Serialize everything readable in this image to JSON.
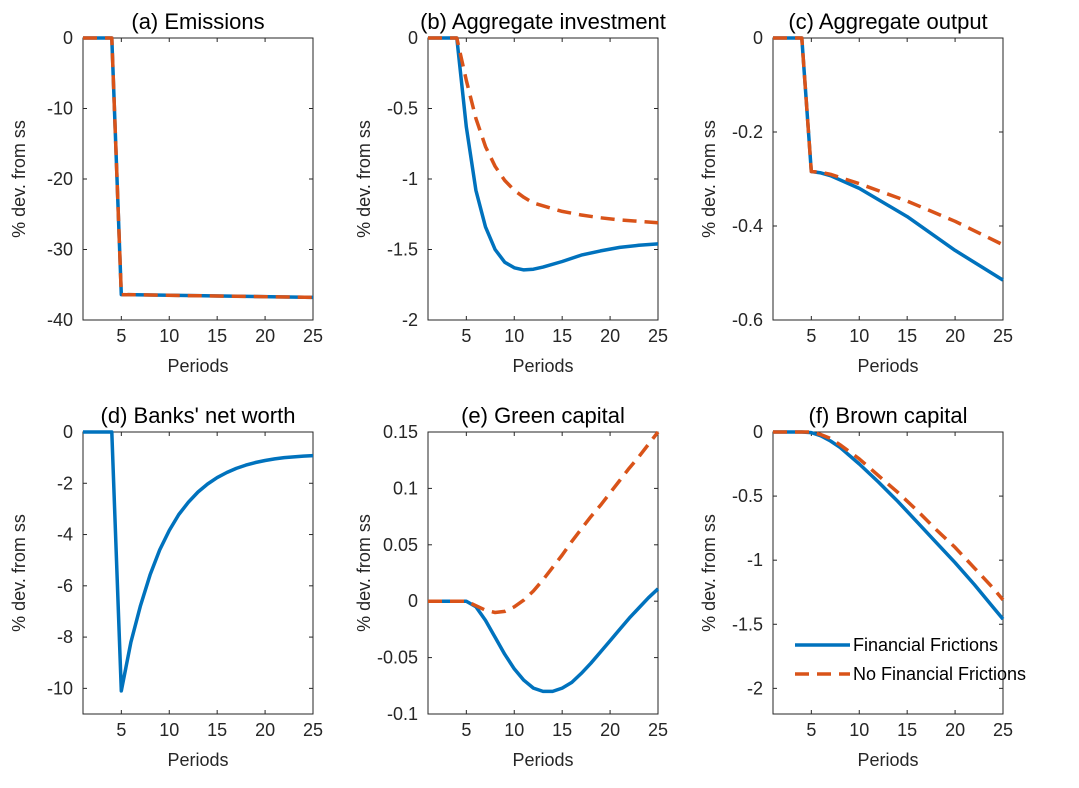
{
  "chart_data": [
    {
      "type": "line",
      "title": "(a) Emissions",
      "xlabel": "Periods",
      "ylabel": "% dev. from ss",
      "xlim": [
        1,
        25
      ],
      "ylim": [
        -40,
        0
      ],
      "xticks": [
        5,
        10,
        15,
        20,
        25
      ],
      "yticks": [
        0,
        -10,
        -20,
        -30,
        -40
      ],
      "ytick_labels": [
        "0",
        "-10",
        "-20",
        "-30",
        "-40"
      ],
      "x": [
        1,
        4,
        5,
        25
      ],
      "series": [
        {
          "name": "Financial Frictions",
          "values": [
            0,
            0,
            -36.4,
            -36.8
          ]
        },
        {
          "name": "No Financial Frictions",
          "values": [
            0,
            0,
            -36.4,
            -36.8
          ]
        }
      ]
    },
    {
      "type": "line",
      "title": "(b) Aggregate investment",
      "xlabel": "Periods",
      "ylabel": "% dev. from ss",
      "xlim": [
        1,
        25
      ],
      "ylim": [
        -2,
        0
      ],
      "xticks": [
        5,
        10,
        15,
        20,
        25
      ],
      "yticks": [
        0,
        -0.5,
        -1,
        -1.5,
        -2
      ],
      "ytick_labels": [
        "0",
        "-0.5",
        "-1",
        "-1.5",
        "-2"
      ],
      "x": [
        1,
        4,
        5,
        6,
        7,
        8,
        9,
        10,
        11,
        12,
        13,
        15,
        17,
        19,
        21,
        23,
        25
      ],
      "series": [
        {
          "name": "Financial Frictions",
          "values": [
            0,
            0,
            -0.63,
            -1.08,
            -1.34,
            -1.5,
            -1.59,
            -1.63,
            -1.645,
            -1.64,
            -1.625,
            -1.585,
            -1.54,
            -1.51,
            -1.485,
            -1.47,
            -1.46
          ]
        },
        {
          "name": "No Financial Frictions",
          "values": [
            0,
            0,
            -0.3,
            -0.57,
            -0.77,
            -0.91,
            -1.01,
            -1.08,
            -1.13,
            -1.17,
            -1.19,
            -1.23,
            -1.255,
            -1.275,
            -1.29,
            -1.3,
            -1.31
          ]
        }
      ]
    },
    {
      "type": "line",
      "title": "(c) Aggregate output",
      "xlabel": "Periods",
      "ylabel": "% dev. from ss",
      "xlim": [
        1,
        25
      ],
      "ylim": [
        -0.6,
        0
      ],
      "xticks": [
        5,
        10,
        15,
        20,
        25
      ],
      "yticks": [
        0,
        -0.2,
        -0.4,
        -0.6
      ],
      "ytick_labels": [
        "0",
        "-0.2",
        "-0.4",
        "-0.6"
      ],
      "x": [
        1,
        4,
        5,
        6,
        7,
        10,
        15,
        20,
        25
      ],
      "series": [
        {
          "name": "Financial Frictions",
          "values": [
            0,
            0,
            -0.284,
            -0.287,
            -0.293,
            -0.32,
            -0.38,
            -0.452,
            -0.515
          ]
        },
        {
          "name": "No Financial Frictions",
          "values": [
            0,
            0,
            -0.284,
            -0.286,
            -0.29,
            -0.31,
            -0.347,
            -0.39,
            -0.44
          ]
        }
      ]
    },
    {
      "type": "line",
      "title": "(d) Banks' net worth",
      "xlabel": "Periods",
      "ylabel": "% dev. from ss",
      "xlim": [
        1,
        25
      ],
      "ylim": [
        -11,
        0
      ],
      "xticks": [
        5,
        10,
        15,
        20,
        25
      ],
      "yticks": [
        0,
        -2,
        -4,
        -6,
        -8,
        -10
      ],
      "ytick_labels": [
        "0",
        "-2",
        "-4",
        "-6",
        "-8",
        "-10"
      ],
      "x": [
        1,
        4,
        5,
        6,
        7,
        8,
        9,
        10,
        11,
        12,
        13,
        14,
        15,
        16,
        17,
        18,
        19,
        20,
        21,
        22,
        23,
        24,
        25
      ],
      "series": [
        {
          "name": "Financial Frictions",
          "values": [
            0,
            0,
            -10.1,
            -8.2,
            -6.77,
            -5.57,
            -4.6,
            -3.84,
            -3.22,
            -2.74,
            -2.34,
            -2.03,
            -1.78,
            -1.58,
            -1.42,
            -1.29,
            -1.19,
            -1.11,
            -1.05,
            -1.0,
            -0.97,
            -0.94,
            -0.92
          ]
        }
      ]
    },
    {
      "type": "line",
      "title": "(e) Green capital",
      "xlabel": "Periods",
      "ylabel": "% dev. from ss",
      "xlim": [
        1,
        25
      ],
      "ylim": [
        -0.1,
        0.15
      ],
      "xticks": [
        5,
        10,
        15,
        20,
        25
      ],
      "yticks": [
        0.15,
        0.1,
        0.05,
        0,
        -0.05,
        -0.1
      ],
      "ytick_labels": [
        "0.15",
        "0.1",
        "0.05",
        "0",
        "-0.05",
        "-0.1"
      ],
      "x": [
        1,
        4,
        5,
        6,
        7,
        8,
        9,
        10,
        11,
        12,
        13,
        14,
        15,
        16,
        17,
        18,
        19,
        20,
        21,
        22,
        23,
        24,
        25
      ],
      "series": [
        {
          "name": "Financial Frictions",
          "values": [
            0,
            0,
            0,
            -0.005,
            -0.017,
            -0.032,
            -0.047,
            -0.06,
            -0.07,
            -0.077,
            -0.08,
            -0.08,
            -0.077,
            -0.072,
            -0.064,
            -0.055,
            -0.045,
            -0.035,
            -0.025,
            -0.015,
            -0.006,
            0.003,
            0.011
          ]
        },
        {
          "name": "No Financial Frictions",
          "values": [
            0,
            0,
            0,
            -0.004,
            -0.008,
            -0.01,
            -0.009,
            -0.005,
            0.001,
            0.009,
            0.019,
            0.03,
            0.041,
            0.053,
            0.064,
            0.075,
            0.085,
            0.096,
            0.107,
            0.118,
            0.128,
            0.139,
            0.15
          ]
        }
      ]
    },
    {
      "type": "line",
      "title": "(f) Brown capital",
      "xlabel": "Periods",
      "ylabel": "% dev. from ss",
      "xlim": [
        1,
        25
      ],
      "ylim": [
        -2.2,
        0
      ],
      "xticks": [
        5,
        10,
        15,
        20,
        25
      ],
      "yticks": [
        0,
        -0.5,
        -1,
        -1.5,
        -2
      ],
      "ytick_labels": [
        "0",
        "-0.5",
        "-1",
        "-1.5",
        "-2"
      ],
      "legend": "bottom-right",
      "x": [
        1,
        4,
        5,
        6,
        7,
        8,
        10,
        12,
        14,
        16,
        18,
        20,
        22,
        24,
        25
      ],
      "series": [
        {
          "name": "Financial Frictions",
          "values": [
            0,
            0,
            -0.005,
            -0.03,
            -0.07,
            -0.12,
            -0.25,
            -0.39,
            -0.54,
            -0.7,
            -0.86,
            -1.02,
            -1.19,
            -1.37,
            -1.46
          ]
        },
        {
          "name": "No Financial Frictions",
          "values": [
            0,
            0,
            0,
            -0.02,
            -0.05,
            -0.1,
            -0.21,
            -0.34,
            -0.47,
            -0.61,
            -0.76,
            -0.9,
            -1.06,
            -1.22,
            -1.31
          ]
        }
      ]
    }
  ],
  "colors": {
    "financial_frictions": "#0072BD",
    "no_financial_frictions": "#D95319",
    "axis": "#262626"
  }
}
